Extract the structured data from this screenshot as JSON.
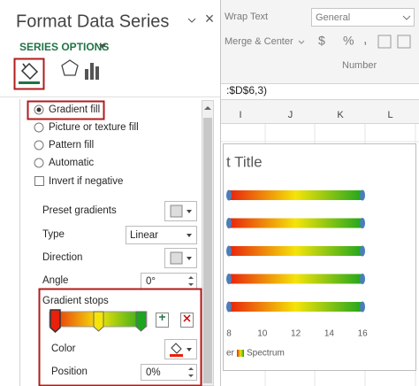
{
  "pane": {
    "title": "Format Data Series",
    "close": "×",
    "section": "SERIES OPTIONS",
    "fill_options": [
      "Gradient fill",
      "Picture or texture fill",
      "Pattern fill",
      "Automatic"
    ],
    "invert": "Invert if negative",
    "preset_gradients": "Preset gradients",
    "type_label": "Type",
    "type_value": "Linear",
    "direction": "Direction",
    "angle_label": "Angle",
    "angle_value": "0°",
    "gradient_stops": "Gradient stops",
    "color": "Color",
    "position_label": "Position",
    "position_value": "0%"
  },
  "ribbon": {
    "wrap_text": "Wrap Text",
    "merge_center": "Merge & Center",
    "number_format": "General",
    "currency": "$",
    "percent": "%",
    "comma": ",",
    "group": "Number"
  },
  "formula": ":$D$6,3)",
  "columns": [
    "I",
    "J",
    "K",
    "L"
  ],
  "chart": {
    "title": "t Title",
    "axis_labels": [
      8,
      10,
      12,
      14,
      16
    ],
    "legend": [
      "er",
      "Spectrum"
    ]
  }
}
